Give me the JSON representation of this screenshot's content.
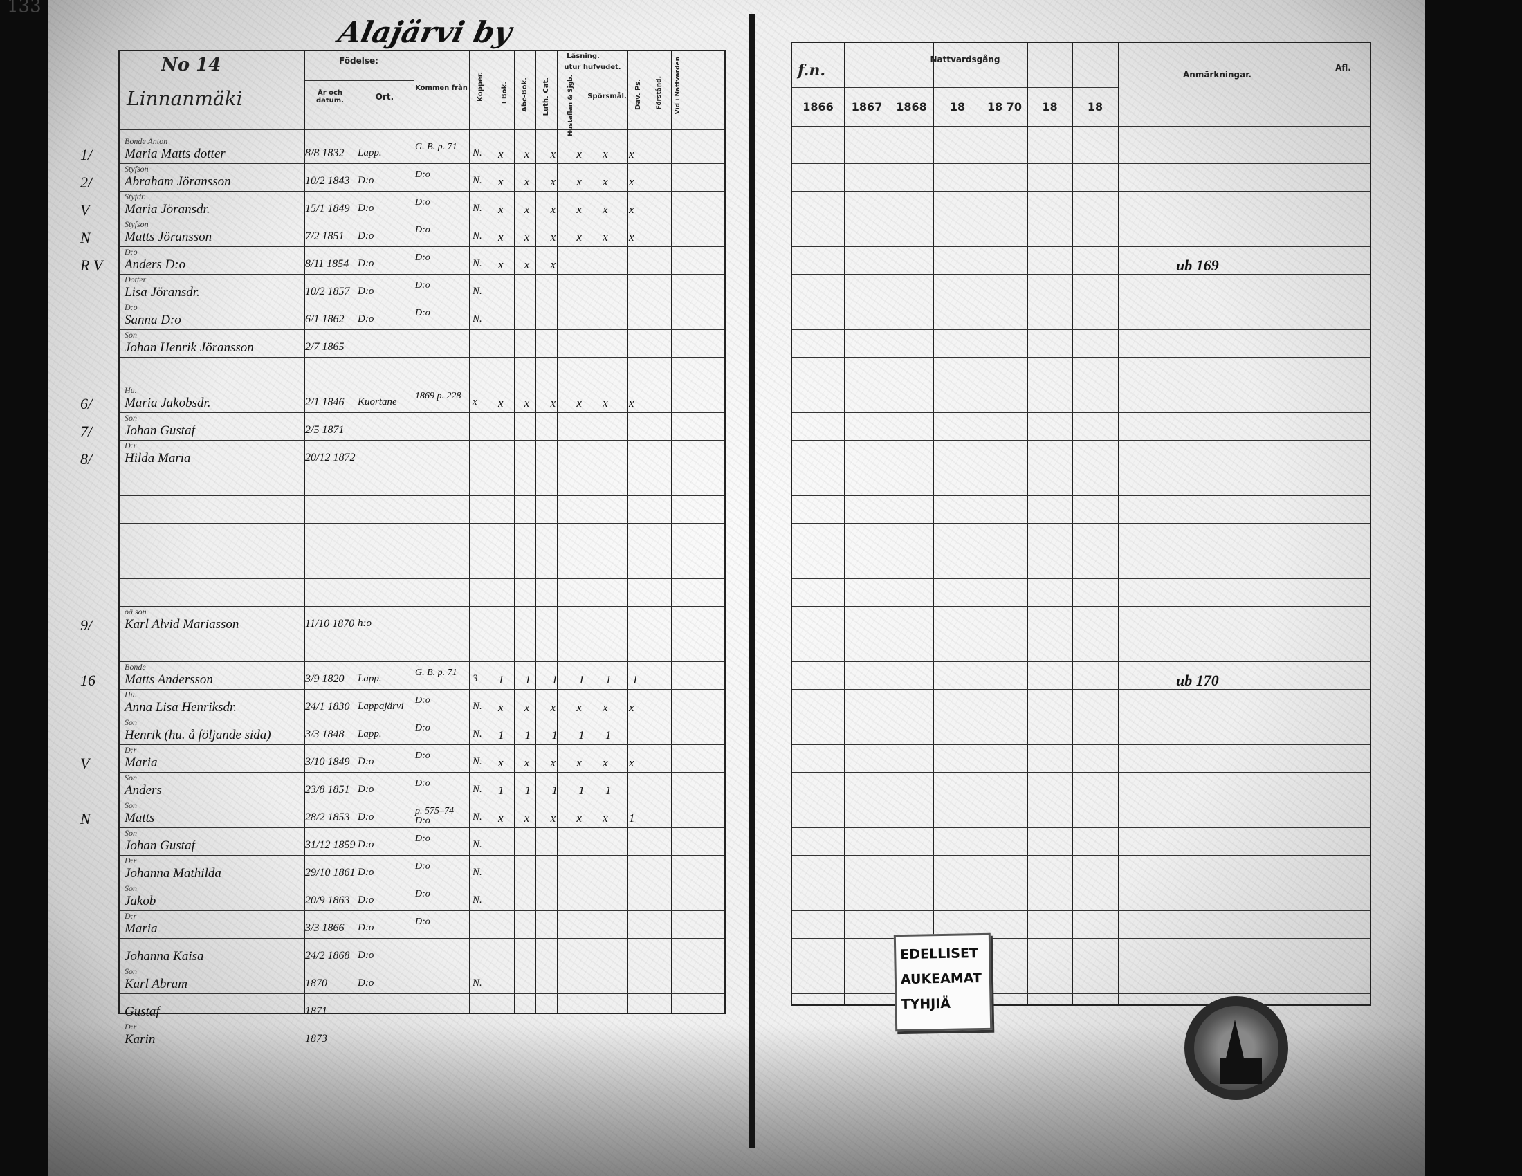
{
  "page_number": "133",
  "village_title": "Alajärvi by",
  "left_header": {
    "household_no": "No 14",
    "farm_name": "Linnanmäki",
    "birth": "Födelse:",
    "year_date": "År och datum.",
    "place": "Ort.",
    "came_from": "Kommen från",
    "smallpox": "Kopper.",
    "reading": "Läsning.",
    "by_heart": "utur hufvudet.",
    "in_book": "I Bok.",
    "abc": "Abc-Bok.",
    "catechism": "Luth. Cat.",
    "household_table": "Hustaflan & Sjgb.",
    "questions": "Spörsmål.",
    "psalms": "Dav. Ps.",
    "understanding": "Förstånd.",
    "communion": "Vid i Nattvarden"
  },
  "right_header": {
    "communion_title": "Nattvardsgång",
    "mark": "f.n.",
    "years": [
      "1866",
      "1867",
      "1868",
      "18",
      "18 70",
      "18",
      "18"
    ],
    "remarks": "Anmärkningar.",
    "last_col": "Afl."
  },
  "rows": [
    {
      "slot": 0,
      "margin": "1/",
      "rel": "Bonde Anton",
      "name": "Maria Matts dotter",
      "date": "8/8 1832",
      "place": "Lapp.",
      "from": "G. B. p. 71",
      "kopper": "N.",
      "marks": "x x x x x x"
    },
    {
      "slot": 1,
      "margin": "2/",
      "rel": "Styfson",
      "name": "Abraham Jöransson",
      "date": "10/2 1843",
      "place": "D:o",
      "from": "D:o",
      "kopper": "N.",
      "marks": "x x x x x x"
    },
    {
      "slot": 2,
      "margin": "V",
      "rel": "Styfdr.",
      "name": "Maria Jöransdr.",
      "date": "15/1 1849",
      "place": "D:o",
      "from": "D:o",
      "kopper": "N.",
      "marks": "x x x x x x"
    },
    {
      "slot": 3,
      "margin": "N",
      "rel": "Styfson",
      "name": "Matts Jöransson",
      "date": "7/2 1851",
      "place": "D:o",
      "from": "D:o",
      "kopper": "N.",
      "marks": "x x x x x x"
    },
    {
      "slot": 4,
      "margin": "R V",
      "rel": "D:o",
      "name": "Anders D:o",
      "date": "8/11 1854",
      "place": "D:o",
      "from": "D:o",
      "kopper": "N.",
      "marks": "x x x"
    },
    {
      "slot": 5,
      "margin": "",
      "rel": "Dotter",
      "name": "Lisa Jöransdr.",
      "date": "10/2 1857",
      "place": "D:o",
      "from": "D:o",
      "kopper": "N.",
      "marks": ""
    },
    {
      "slot": 6,
      "margin": "",
      "rel": "D:o",
      "name": "Sanna D:o",
      "date": "6/1 1862",
      "place": "D:o",
      "from": "D:o",
      "kopper": "N.",
      "marks": ""
    },
    {
      "slot": 7,
      "margin": "",
      "rel": "Son",
      "name": "Johan Henrik Jöransson",
      "date": "2/7 1865",
      "place": "",
      "from": "",
      "kopper": "",
      "marks": ""
    },
    {
      "slot": 9,
      "margin": "6/",
      "rel": "Hu.",
      "name": "Maria Jakobsdr.",
      "date": "2/1 1846",
      "place": "Kuortane",
      "from": "1869 p. 228",
      "kopper": "x",
      "marks": "x x x x x x"
    },
    {
      "slot": 10,
      "margin": "7/",
      "rel": "Son",
      "name": "Johan Gustaf",
      "date": "2/5 1871",
      "place": "",
      "from": "",
      "kopper": "",
      "marks": ""
    },
    {
      "slot": 11,
      "margin": "8/",
      "rel": "D:r",
      "name": "Hilda Maria",
      "date": "20/12 1872",
      "place": "",
      "from": "",
      "kopper": "",
      "marks": ""
    },
    {
      "slot": 17,
      "margin": "9/",
      "rel": "oä son",
      "name": "Karl Alvid Mariasson",
      "date": "11/10 1870",
      "place": "h:o",
      "from": "",
      "kopper": "",
      "marks": ""
    },
    {
      "slot": 19,
      "margin": "16",
      "rel": "Bonde",
      "name": "Matts Andersson",
      "date": "3/9 1820",
      "place": "Lapp.",
      "from": "G. B. p. 71",
      "kopper": "3",
      "marks": "1 1 1 1 1 1"
    },
    {
      "slot": 20,
      "margin": "",
      "rel": "Hu.",
      "name": "Anna Lisa Henriksdr.",
      "date": "24/1 1830",
      "place": "Lappajärvi",
      "from": "D:o",
      "kopper": "N.",
      "marks": "x x x x x x"
    },
    {
      "slot": 21,
      "margin": "",
      "rel": "Son",
      "name": "Henrik (hu. å följande sida)",
      "date": "3/3 1848",
      "place": "Lapp.",
      "from": "D:o",
      "kopper": "N.",
      "marks": "1 1 1 1 1"
    },
    {
      "slot": 22,
      "margin": "V",
      "rel": "D:r",
      "name": "Maria",
      "date": "3/10 1849",
      "place": "D:o",
      "from": "D:o",
      "kopper": "N.",
      "marks": "x x x x x x"
    },
    {
      "slot": 23,
      "margin": "",
      "rel": "Son",
      "name": "Anders",
      "date": "23/8 1851",
      "place": "D:o",
      "from": "D:o",
      "kopper": "N.",
      "marks": "1 1 1 1 1"
    },
    {
      "slot": 24,
      "margin": "N",
      "rel": "Son",
      "name": "Matts",
      "date": "28/2 1853",
      "place": "D:o",
      "from": "p. 575–74 D:o",
      "kopper": "N.",
      "marks": "x x x x x 1"
    },
    {
      "slot": 25,
      "margin": "",
      "rel": "Son",
      "name": "Johan Gustaf",
      "date": "31/12 1859",
      "place": "D:o",
      "from": "D:o",
      "kopper": "N.",
      "marks": ""
    },
    {
      "slot": 26,
      "margin": "",
      "rel": "D:r",
      "name": "Johanna Mathilda",
      "date": "29/10 1861",
      "place": "D:o",
      "from": "D:o",
      "kopper": "N.",
      "marks": ""
    },
    {
      "slot": 27,
      "margin": "",
      "rel": "Son",
      "name": "Jakob",
      "date": "20/9 1863",
      "place": "D:o",
      "from": "D:o",
      "kopper": "N.",
      "marks": ""
    },
    {
      "slot": 28,
      "margin": "",
      "rel": "D:r",
      "name": "Maria",
      "date": "3/3 1866",
      "place": "D:o",
      "from": "D:o",
      "kopper": "",
      "marks": ""
    },
    {
      "slot": 29,
      "margin": "",
      "rel": "",
      "name": "Johanna Kaisa",
      "date": "24/2 1868",
      "place": "D:o",
      "from": "",
      "kopper": "",
      "marks": ""
    },
    {
      "slot": 30,
      "margin": "",
      "rel": "Son",
      "name": "Karl Abram",
      "date": "1870",
      "place": "D:o",
      "from": "",
      "kopper": "N.",
      "marks": ""
    },
    {
      "slot": 31,
      "margin": "",
      "rel": "",
      "name": "Gustaf",
      "date": "1871",
      "place": "",
      "from": "",
      "kopper": "",
      "marks": ""
    },
    {
      "slot": 32,
      "margin": "",
      "rel": "D:r",
      "name": "Karin",
      "date": "1873",
      "place": "",
      "from": "",
      "kopper": "",
      "marks": ""
    }
  ],
  "remarks": [
    {
      "slot": 4,
      "text": "ub 169"
    },
    {
      "slot": 19,
      "text": "ub 170"
    }
  ],
  "paper_label": {
    "lines": [
      "EDELLISET",
      "AUKEAMAT",
      "TYHJIÄ"
    ]
  }
}
